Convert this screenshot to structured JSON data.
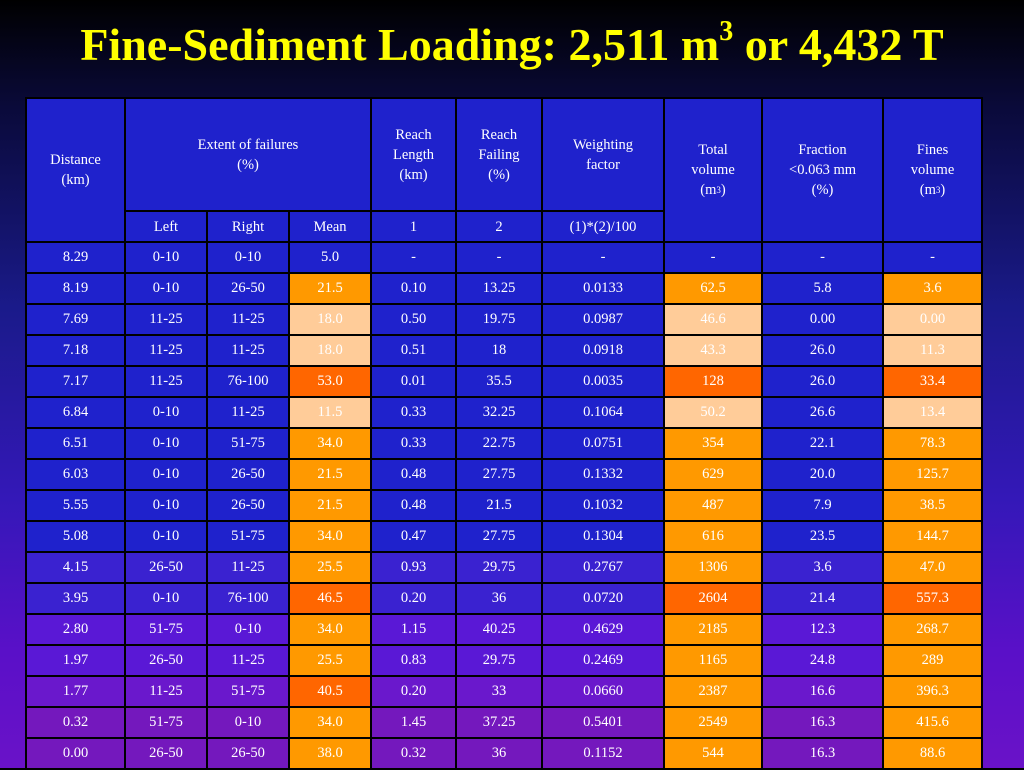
{
  "title": {
    "text": "Fine-Sediment Loading: 2,511 m",
    "sup": "3",
    "suffix": " or 4,432 T"
  },
  "header": {
    "distance": [
      "Distance",
      "(km)"
    ],
    "extent": [
      "Extent of failures",
      "(%)"
    ],
    "reach_length": [
      "Reach",
      "Length",
      "(km)"
    ],
    "reach_failing": [
      "Reach",
      "Failing",
      "(%)"
    ],
    "weighting": [
      "Weighting",
      "factor"
    ],
    "total_volume": [
      "Total",
      "volume",
      "(m",
      "3",
      ")"
    ],
    "fraction": [
      "Fraction",
      "<0.063 mm",
      "(%)"
    ],
    "fines_volume": [
      "Fines",
      "volume",
      "(m",
      "3",
      ")"
    ],
    "sub_left": "Left",
    "sub_right": "Right",
    "sub_mean": "Mean",
    "sub_1": "1",
    "sub_2": "2",
    "sub_formula": "(1)*(2)/100"
  },
  "rows": [
    {
      "distance": "8.29",
      "left": "0-10",
      "right": "0-10",
      "mean": "5.0",
      "length": "-",
      "failing": "-",
      "weight": "-",
      "total": "-",
      "fraction": "-",
      "fines": "-",
      "mean_hl": "",
      "total_hl": "",
      "fines_hl": ""
    },
    {
      "distance": "8.19",
      "left": "0-10",
      "right": "26-50",
      "mean": "21.5",
      "length": "0.10",
      "failing": "13.25",
      "weight": "0.0133",
      "total": "62.5",
      "fraction": "5.8",
      "fines": "3.6",
      "mean_hl": "mid",
      "total_hl": "mid",
      "fines_hl": "mid"
    },
    {
      "distance": "7.69",
      "left": "11-25",
      "right": "11-25",
      "mean": "18.0",
      "length": "0.50",
      "failing": "19.75",
      "weight": "0.0987",
      "total": "46.6",
      "fraction": "0.00",
      "fines": "0.00",
      "mean_hl": "light",
      "total_hl": "light",
      "fines_hl": "light"
    },
    {
      "distance": "7.18",
      "left": "11-25",
      "right": "11-25",
      "mean": "18.0",
      "length": "0.51",
      "failing": "18",
      "weight": "0.0918",
      "total": "43.3",
      "fraction": "26.0",
      "fines": "11.3",
      "mean_hl": "light",
      "total_hl": "light",
      "fines_hl": "light"
    },
    {
      "distance": "7.17",
      "left": "11-25",
      "right": "76-100",
      "mean": "53.0",
      "length": "0.01",
      "failing": "35.5",
      "weight": "0.0035",
      "total": "128",
      "fraction": "26.0",
      "fines": "33.4",
      "mean_hl": "dark",
      "total_hl": "dark",
      "fines_hl": "dark"
    },
    {
      "distance": "6.84",
      "left": "0-10",
      "right": "11-25",
      "mean": "11.5",
      "length": "0.33",
      "failing": "32.25",
      "weight": "0.1064",
      "total": "50.2",
      "fraction": "26.6",
      "fines": "13.4",
      "mean_hl": "light",
      "total_hl": "light",
      "fines_hl": "light"
    },
    {
      "distance": "6.51",
      "left": "0-10",
      "right": "51-75",
      "mean": "34.0",
      "length": "0.33",
      "failing": "22.75",
      "weight": "0.0751",
      "total": "354",
      "fraction": "22.1",
      "fines": "78.3",
      "mean_hl": "mid",
      "total_hl": "mid",
      "fines_hl": "mid"
    },
    {
      "distance": "6.03",
      "left": "0-10",
      "right": "26-50",
      "mean": "21.5",
      "length": "0.48",
      "failing": "27.75",
      "weight": "0.1332",
      "total": "629",
      "fraction": "20.0",
      "fines": "125.7",
      "mean_hl": "mid",
      "total_hl": "mid",
      "fines_hl": "mid"
    },
    {
      "distance": "5.55",
      "left": "0-10",
      "right": "26-50",
      "mean": "21.5",
      "length": "0.48",
      "failing": "21.5",
      "weight": "0.1032",
      "total": "487",
      "fraction": "7.9",
      "fines": "38.5",
      "mean_hl": "mid",
      "total_hl": "mid",
      "fines_hl": "mid"
    },
    {
      "distance": "5.08",
      "left": "0-10",
      "right": "51-75",
      "mean": "34.0",
      "length": "0.47",
      "failing": "27.75",
      "weight": "0.1304",
      "total": "616",
      "fraction": "23.5",
      "fines": "144.7",
      "mean_hl": "mid",
      "total_hl": "mid",
      "fines_hl": "mid"
    },
    {
      "distance": "4.15",
      "left": "26-50",
      "right": "11-25",
      "mean": "25.5",
      "length": "0.93",
      "failing": "29.75",
      "weight": "0.2767",
      "total": "1306",
      "fraction": "3.6",
      "fines": "47.0",
      "mean_hl": "mid",
      "total_hl": "mid",
      "fines_hl": "mid"
    },
    {
      "distance": "3.95",
      "left": "0-10",
      "right": "76-100",
      "mean": "46.5",
      "length": "0.20",
      "failing": "36",
      "weight": "0.0720",
      "total": "2604",
      "fraction": "21.4",
      "fines": "557.3",
      "mean_hl": "dark",
      "total_hl": "dark",
      "fines_hl": "dark"
    },
    {
      "distance": "2.80",
      "left": "51-75",
      "right": "0-10",
      "mean": "34.0",
      "length": "1.15",
      "failing": "40.25",
      "weight": "0.4629",
      "total": "2185",
      "fraction": "12.3",
      "fines": "268.7",
      "mean_hl": "mid",
      "total_hl": "mid",
      "fines_hl": "mid"
    },
    {
      "distance": "1.97",
      "left": "26-50",
      "right": "11-25",
      "mean": "25.5",
      "length": "0.83",
      "failing": "29.75",
      "weight": "0.2469",
      "total": "1165",
      "fraction": "24.8",
      "fines": "289",
      "mean_hl": "mid",
      "total_hl": "mid",
      "fines_hl": "mid"
    },
    {
      "distance": "1.77",
      "left": "11-25",
      "right": "51-75",
      "mean": "40.5",
      "length": "0.20",
      "failing": "33",
      "weight": "0.0660",
      "total": "2387",
      "fraction": "16.6",
      "fines": "396.3",
      "mean_hl": "dark",
      "total_hl": "mid",
      "fines_hl": "mid"
    },
    {
      "distance": "0.32",
      "left": "51-75",
      "right": "0-10",
      "mean": "34.0",
      "length": "1.45",
      "failing": "37.25",
      "weight": "0.5401",
      "total": "2549",
      "fraction": "16.3",
      "fines": "415.6",
      "mean_hl": "mid",
      "total_hl": "mid",
      "fines_hl": "mid"
    },
    {
      "distance": "0.00",
      "left": "26-50",
      "right": "26-50",
      "mean": "38.0",
      "length": "0.32",
      "failing": "36",
      "weight": "0.1152",
      "total": "544",
      "fraction": "16.3",
      "fines": "88.6",
      "mean_hl": "mid",
      "total_hl": "mid",
      "fines_hl": "mid"
    }
  ],
  "colors": {
    "title": "#ffff00",
    "cell": "#1f22cc",
    "highlight_light": "#ffcc99",
    "highlight_mid": "#ff9900",
    "highlight_dark": "#ff6600"
  }
}
